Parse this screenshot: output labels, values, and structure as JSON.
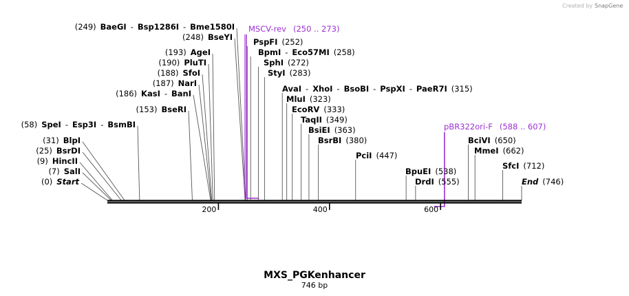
{
  "credit": {
    "text": "Created by",
    "brand": "SnapGene"
  },
  "sequence": {
    "name": "MXS_PGKenhancer",
    "length_label": "746 bp",
    "length": 746
  },
  "ruler": {
    "ticks": [
      200,
      400,
      600
    ]
  },
  "enzyme_rows": [
    {
      "parts": [
        {
          "t": "(0)",
          "k": "pos"
        },
        {
          "t": "Start",
          "k": "ital"
        }
      ],
      "sites": [
        0
      ]
    },
    {
      "parts": [
        {
          "t": "(7)",
          "k": "pos"
        },
        {
          "t": "SalI",
          "k": "enz"
        }
      ],
      "sites": [
        7
      ]
    },
    {
      "parts": [
        {
          "t": "(9)",
          "k": "pos"
        },
        {
          "t": "HincII",
          "k": "enz"
        }
      ],
      "sites": [
        9
      ]
    },
    {
      "parts": [
        {
          "t": "(25)",
          "k": "pos"
        },
        {
          "t": "BsrDI",
          "k": "enz"
        }
      ],
      "sites": [
        25
      ]
    },
    {
      "parts": [
        {
          "t": "(31)",
          "k": "pos"
        },
        {
          "t": "BlpI",
          "k": "enz"
        }
      ],
      "sites": [
        31
      ]
    },
    {
      "parts": [
        {
          "t": "(58)",
          "k": "pos"
        },
        {
          "t": "SpeI",
          "k": "enz"
        },
        {
          "t": "-",
          "k": "pos"
        },
        {
          "t": "Esp3I",
          "k": "enz"
        },
        {
          "t": "-",
          "k": "pos"
        },
        {
          "t": "BsmBI",
          "k": "enz"
        }
      ],
      "sites": [
        58
      ]
    },
    {
      "parts": [
        {
          "t": "(153)",
          "k": "pos"
        },
        {
          "t": "BseRI",
          "k": "enz"
        }
      ],
      "sites": [
        153
      ]
    },
    {
      "parts": [
        {
          "t": "(186)",
          "k": "pos"
        },
        {
          "t": "KasI",
          "k": "enz"
        },
        {
          "t": "-",
          "k": "pos"
        },
        {
          "t": "BanI",
          "k": "enz"
        }
      ],
      "sites": [
        186
      ]
    },
    {
      "parts": [
        {
          "t": "(187)",
          "k": "pos"
        },
        {
          "t": "NarI",
          "k": "enz"
        }
      ],
      "sites": [
        187
      ]
    },
    {
      "parts": [
        {
          "t": "(188)",
          "k": "pos"
        },
        {
          "t": "SfoI",
          "k": "enz"
        }
      ],
      "sites": [
        188
      ]
    },
    {
      "parts": [
        {
          "t": "(190)",
          "k": "pos"
        },
        {
          "t": "PluTI",
          "k": "enz"
        }
      ],
      "sites": [
        190
      ]
    },
    {
      "parts": [
        {
          "t": "(193)",
          "k": "pos"
        },
        {
          "t": "AgeI",
          "k": "enz"
        }
      ],
      "sites": [
        193
      ]
    },
    {
      "parts": [
        {
          "t": "(248)",
          "k": "pos"
        },
        {
          "t": "BseYI",
          "k": "enz"
        }
      ],
      "sites": [
        248
      ]
    },
    {
      "parts": [
        {
          "t": "(249)",
          "k": "pos"
        },
        {
          "t": "BaeGI",
          "k": "enz"
        },
        {
          "t": "-",
          "k": "pos"
        },
        {
          "t": "Bsp1286I",
          "k": "enz"
        },
        {
          "t": "-",
          "k": "pos"
        },
        {
          "t": "Bme1580I",
          "k": "enz"
        }
      ],
      "sites": [
        249
      ]
    },
    {
      "parts": [
        {
          "t": "PspFI",
          "k": "enz"
        },
        {
          "t": "(252)",
          "k": "pos"
        }
      ],
      "sites": [
        252
      ]
    },
    {
      "parts": [
        {
          "t": "BpmI",
          "k": "enz"
        },
        {
          "t": "-",
          "k": "pos"
        },
        {
          "t": "Eco57MI",
          "k": "enz"
        },
        {
          "t": "(258)",
          "k": "pos"
        }
      ],
      "sites": [
        258
      ]
    },
    {
      "parts": [
        {
          "t": "SphI",
          "k": "enz"
        },
        {
          "t": "(272)",
          "k": "pos"
        }
      ],
      "sites": [
        272
      ]
    },
    {
      "parts": [
        {
          "t": "StyI",
          "k": "enz"
        },
        {
          "t": "(283)",
          "k": "pos"
        }
      ],
      "sites": [
        283
      ]
    },
    {
      "parts": [
        {
          "t": "AvaI",
          "k": "enz"
        },
        {
          "t": "-",
          "k": "pos"
        },
        {
          "t": "XhoI",
          "k": "enz"
        },
        {
          "t": "-",
          "k": "pos"
        },
        {
          "t": "BsoBI",
          "k": "enz"
        },
        {
          "t": "-",
          "k": "pos"
        },
        {
          "t": "PspXI",
          "k": "enz"
        },
        {
          "t": "-",
          "k": "pos"
        },
        {
          "t": "PaeR7I",
          "k": "enz"
        },
        {
          "t": "(315)",
          "k": "pos"
        }
      ],
      "sites": [
        315
      ]
    },
    {
      "parts": [
        {
          "t": "MluI",
          "k": "enz"
        },
        {
          "t": "(323)",
          "k": "pos"
        }
      ],
      "sites": [
        323
      ]
    },
    {
      "parts": [
        {
          "t": "EcoRV",
          "k": "enz"
        },
        {
          "t": "(333)",
          "k": "pos"
        }
      ],
      "sites": [
        333
      ]
    },
    {
      "parts": [
        {
          "t": "TaqII",
          "k": "enz"
        },
        {
          "t": "(349)",
          "k": "pos"
        }
      ],
      "sites": [
        349
      ]
    },
    {
      "parts": [
        {
          "t": "BsiEI",
          "k": "enz"
        },
        {
          "t": "(363)",
          "k": "pos"
        }
      ],
      "sites": [
        363
      ]
    },
    {
      "parts": [
        {
          "t": "BsrBI",
          "k": "enz"
        },
        {
          "t": "(380)",
          "k": "pos"
        }
      ],
      "sites": [
        380
      ]
    },
    {
      "parts": [
        {
          "t": "PciI",
          "k": "enz"
        },
        {
          "t": "(447)",
          "k": "pos"
        }
      ],
      "sites": [
        447
      ]
    },
    {
      "parts": [
        {
          "t": "BpuEI",
          "k": "enz"
        },
        {
          "t": "(538)",
          "k": "pos"
        }
      ],
      "sites": [
        538
      ]
    },
    {
      "parts": [
        {
          "t": "DrdI",
          "k": "enz"
        },
        {
          "t": "(555)",
          "k": "pos"
        }
      ],
      "sites": [
        555
      ]
    },
    {
      "parts": [
        {
          "t": "BciVI",
          "k": "enz"
        },
        {
          "t": "(650)",
          "k": "pos"
        }
      ],
      "sites": [
        650
      ]
    },
    {
      "parts": [
        {
          "t": "MmeI",
          "k": "enz"
        },
        {
          "t": "(662)",
          "k": "pos"
        }
      ],
      "sites": [
        662
      ]
    },
    {
      "parts": [
        {
          "t": "SfcI",
          "k": "enz"
        },
        {
          "t": "(712)",
          "k": "pos"
        }
      ],
      "sites": [
        712
      ]
    },
    {
      "parts": [
        {
          "t": "End",
          "k": "ital"
        },
        {
          "t": "(746)",
          "k": "pos"
        }
      ],
      "sites": [
        746
      ]
    }
  ],
  "primers": [
    {
      "name": "MSCV-rev",
      "range": "(250 .. 273)",
      "start": 250,
      "end": 273,
      "strand": "forward"
    },
    {
      "name": "pBR322ori-F",
      "range": "(588 .. 607)",
      "start": 588,
      "end": 607,
      "strand": "reverse"
    }
  ],
  "colors": {
    "primer": "#9b30d0",
    "backbone": "#000000",
    "site_line": "#555555",
    "credit": "#b0b0b0",
    "brand": "#6a6a6a"
  }
}
